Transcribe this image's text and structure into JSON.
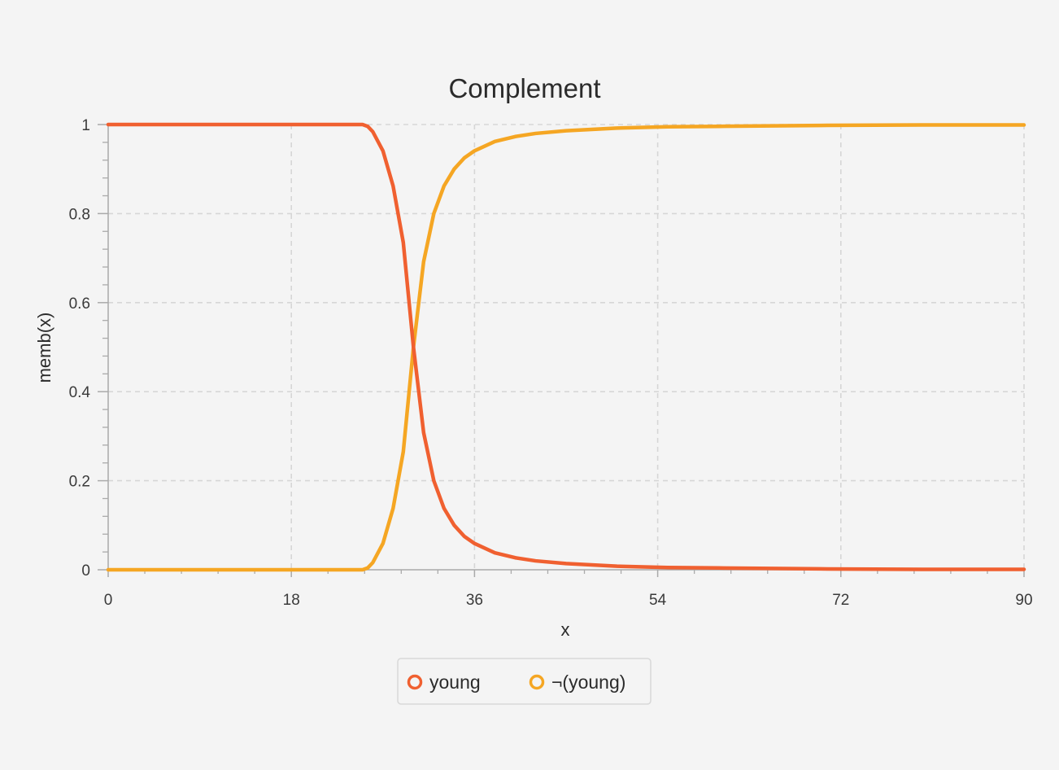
{
  "chart_data": {
    "type": "line",
    "title": "Complement",
    "xlabel": "x",
    "ylabel": "memb(x)",
    "xlim": [
      0,
      90
    ],
    "ylim": [
      0,
      1
    ],
    "x_ticks": [
      "0",
      "18",
      "36",
      "54",
      "72",
      "90"
    ],
    "y_ticks": [
      "0",
      "0.2",
      "0.4",
      "0.6",
      "0.8",
      "1"
    ],
    "grid": true,
    "legend_position": "bottom-center",
    "x": [
      0,
      10,
      20,
      25,
      25.5,
      26,
      27,
      28,
      29,
      30,
      31,
      32,
      33,
      34,
      35,
      36,
      38,
      40,
      42,
      45,
      50,
      55,
      60,
      70,
      80,
      90
    ],
    "series": [
      {
        "name": "young",
        "color": "#f06030",
        "values": [
          1.0,
          1.0,
          1.0,
          1.0,
          0.996,
          0.984,
          0.941,
          0.862,
          0.735,
          0.5,
          0.308,
          0.2,
          0.138,
          0.1,
          0.075,
          0.059,
          0.038,
          0.027,
          0.02,
          0.014,
          0.008,
          0.005,
          0.004,
          0.002,
          0.001,
          0.001
        ]
      },
      {
        "name": "¬(young)",
        "color": "#f5a623",
        "values": [
          0.0,
          0.0,
          0.0,
          0.0,
          0.004,
          0.016,
          0.059,
          0.138,
          0.265,
          0.5,
          0.692,
          0.8,
          0.862,
          0.9,
          0.925,
          0.941,
          0.962,
          0.973,
          0.98,
          0.986,
          0.992,
          0.995,
          0.996,
          0.998,
          0.999,
          0.999
        ]
      }
    ]
  }
}
